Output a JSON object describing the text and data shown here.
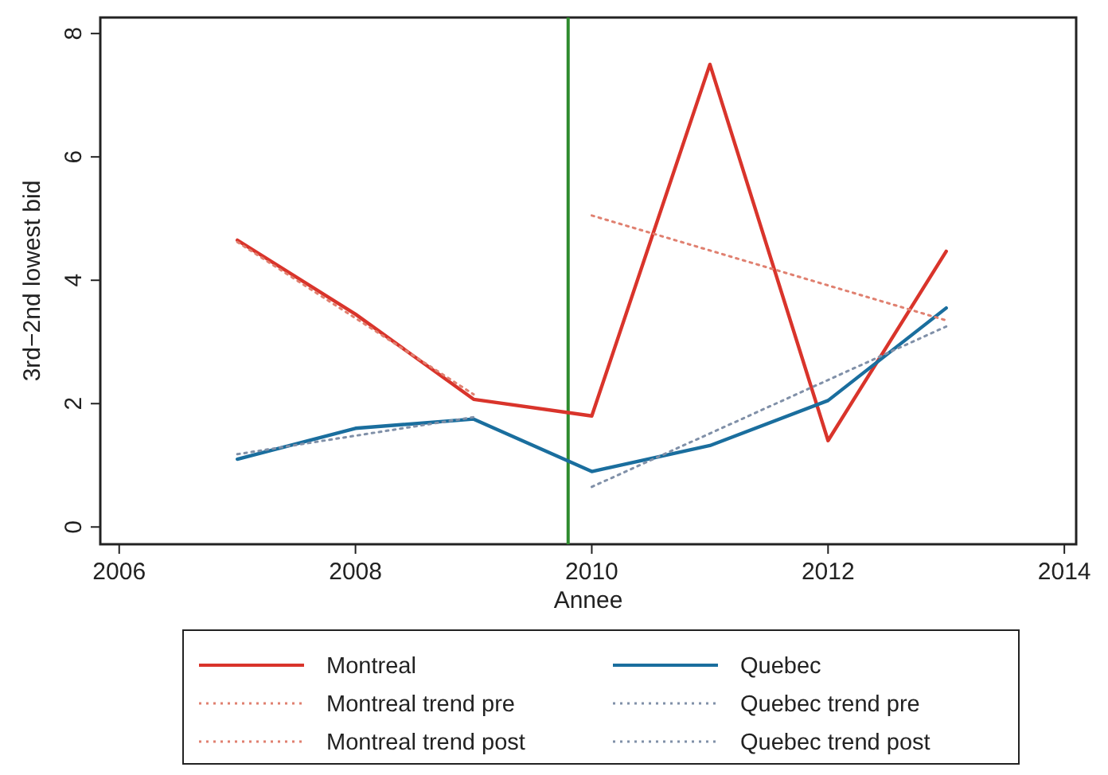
{
  "chart_data": {
    "type": "line",
    "xlabel": "Annee",
    "ylabel": "3rd−2nd lowest bid",
    "xlim": [
      2005.84,
      2014.1
    ],
    "ylim": [
      -0.28,
      8.26
    ],
    "xticks": [
      2006,
      2008,
      2010,
      2012,
      2014
    ],
    "yticks": [
      0,
      2,
      4,
      6,
      8
    ],
    "grid": false,
    "legend": "bottom",
    "marker": "none",
    "series": [
      {
        "name": "Montreal",
        "color": "#d9342b",
        "line_style": "solid",
        "x": [
          2007,
          2008,
          2009,
          2010,
          2011,
          2012,
          2013
        ],
        "values": [
          4.65,
          3.45,
          2.07,
          1.8,
          7.5,
          1.4,
          4.47
        ]
      },
      {
        "name": "Quebec",
        "color": "#1a6e9e",
        "line_style": "solid",
        "x": [
          2007,
          2008,
          2009,
          2010,
          2011,
          2012,
          2013
        ],
        "values": [
          1.1,
          1.6,
          1.75,
          0.9,
          1.32,
          2.05,
          3.55
        ]
      },
      {
        "name": "Montreal trend pre",
        "color": "#e08070",
        "line_style": "dotted",
        "x": [
          2007,
          2009
        ],
        "values": [
          4.62,
          2.15
        ]
      },
      {
        "name": "Quebec trend pre",
        "color": "#8090a8",
        "line_style": "dotted",
        "x": [
          2007,
          2009
        ],
        "values": [
          1.18,
          1.78
        ]
      },
      {
        "name": "Montreal trend post",
        "color": "#e08070",
        "line_style": "dotted",
        "x": [
          2010,
          2013
        ],
        "values": [
          5.05,
          3.35
        ]
      },
      {
        "name": "Quebec trend post",
        "color": "#8090a8",
        "line_style": "dotted",
        "x": [
          2010,
          2013
        ],
        "values": [
          0.65,
          3.25
        ]
      }
    ],
    "ref_lines": [
      {
        "axis": "x",
        "value": 2009.8,
        "color": "#2e8b2e",
        "line_style": "solid"
      }
    ]
  }
}
